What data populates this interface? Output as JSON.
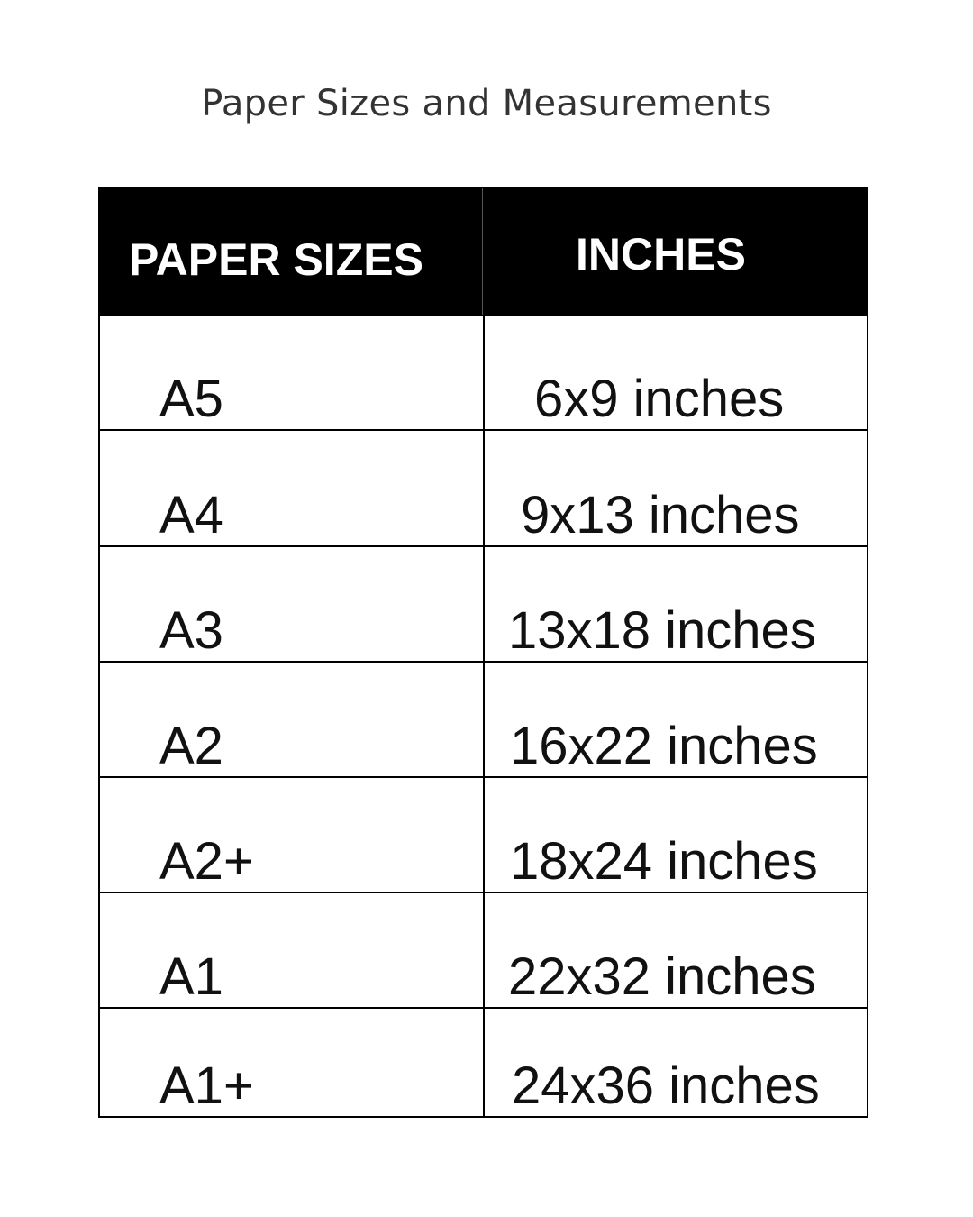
{
  "title": "Paper Sizes and Measurements",
  "table": {
    "headers": [
      "PAPER SIZES",
      "INCHES"
    ],
    "rows": [
      {
        "size": "A5",
        "inches": "6x9 inches"
      },
      {
        "size": "A4",
        "inches": "9x13 inches"
      },
      {
        "size": "A3",
        "inches": "13x18 inches"
      },
      {
        "size": "A2",
        "inches": "16x22 inches"
      },
      {
        "size": "A2+",
        "inches": "18x24 inches"
      },
      {
        "size": "A1",
        "inches": "22x32 inches"
      },
      {
        "size": "A1+",
        "inches": "24x36 inches"
      }
    ]
  }
}
